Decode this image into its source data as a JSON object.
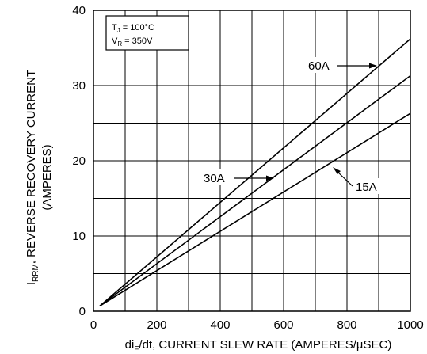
{
  "chart_data": {
    "type": "line",
    "xlim": [
      0,
      1000
    ],
    "ylim": [
      0,
      40
    ],
    "x_ticks": [
      {
        "value": 0,
        "label": "0"
      },
      {
        "value": 200,
        "label": "200"
      },
      {
        "value": 400,
        "label": "400"
      },
      {
        "value": 600,
        "label": "600"
      },
      {
        "value": 800,
        "label": "800"
      },
      {
        "value": 1000,
        "label": "1000"
      }
    ],
    "y_ticks": [
      {
        "value": 0,
        "label": "0"
      },
      {
        "value": 10,
        "label": "10"
      },
      {
        "value": 20,
        "label": "20"
      },
      {
        "value": 30,
        "label": "30"
      },
      {
        "value": 40,
        "label": "40"
      }
    ],
    "grid": true,
    "xlabel_prefix": "di",
    "xlabel_sub": "F",
    "xlabel_suffix": "/dt, CURRENT SLEW RATE (AMPERES/µSEC)",
    "ylabel_prefix": "I",
    "ylabel_sub": "RRM",
    "ylabel_suffix": ", REVERSE RECOVERY CURRENT",
    "ylabel_line2": "(AMPERES)",
    "conditions": {
      "tj_prefix": "T",
      "tj_sub": "J",
      "tj_suffix": " = 100°C",
      "vr_prefix": "V",
      "vr_sub": "R",
      "vr_suffix": " = 350V"
    },
    "series": [
      {
        "name": "60A",
        "x": [
          20,
          1000
        ],
        "y": [
          0.7,
          36.2
        ]
      },
      {
        "name": "30A",
        "x": [
          20,
          1000
        ],
        "y": [
          0.7,
          31.3
        ]
      },
      {
        "name": "15A",
        "x": [
          20,
          1000
        ],
        "y": [
          0.7,
          26.3
        ]
      }
    ],
    "labels": [
      {
        "text": "60A",
        "series": "60A"
      },
      {
        "text": "30A",
        "series": "30A"
      },
      {
        "text": "15A",
        "series": "15A"
      }
    ]
  }
}
